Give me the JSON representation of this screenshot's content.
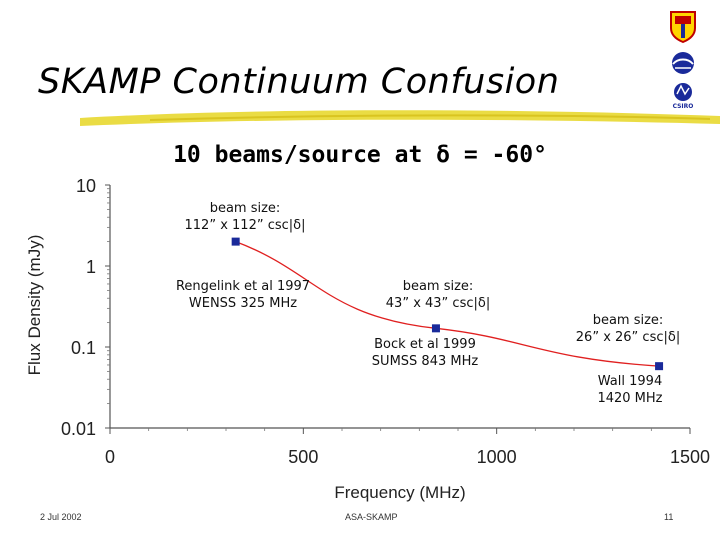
{
  "slide": {
    "title": "SKAMP Continuum Confusion",
    "footer_left": "2 Jul 2002",
    "footer_center": "ASA-SKAMP",
    "footer_right": "11"
  },
  "logos": [
    "university-crest-icon",
    "circular-emblem-icon",
    "csiro-logo-icon"
  ],
  "logo_texts": {
    "csiro": "CSIRO"
  },
  "colors": {
    "line": "#e02020",
    "marker": "#1a2a9a",
    "brush": "#e8d830"
  },
  "chart_data": {
    "type": "scatter",
    "title": "10 beams/source at δ = -60°",
    "xlabel": "Frequency (MHz)",
    "ylabel": "Flux Density (mJy)",
    "xlim": [
      0,
      1500
    ],
    "ylim": [
      0.01,
      10
    ],
    "yscale": "log",
    "x_ticks": [
      "0",
      "500",
      "1000",
      "1500"
    ],
    "y_ticks": [
      "0.01",
      "0.1",
      "1",
      "10"
    ],
    "points": [
      {
        "x": 325,
        "y": 2.0,
        "survey": "Rengelink et al 1997",
        "survey_sub": "WENSS 325 MHz",
        "beam1": "beam size:",
        "beam2": "112” x 112” csc|δ|"
      },
      {
        "x": 843,
        "y": 0.17,
        "survey": "Bock et al 1999",
        "survey_sub": "SUMSS 843 MHz",
        "beam1": "beam size:",
        "beam2": "43” x 43” csc|δ|"
      },
      {
        "x": 1420,
        "y": 0.058,
        "survey": "Wall 1994",
        "survey_sub": "1420 MHz",
        "beam1": "beam size:",
        "beam2": "26” x 26” csc|δ|"
      }
    ],
    "grid": false,
    "legend": "none"
  }
}
